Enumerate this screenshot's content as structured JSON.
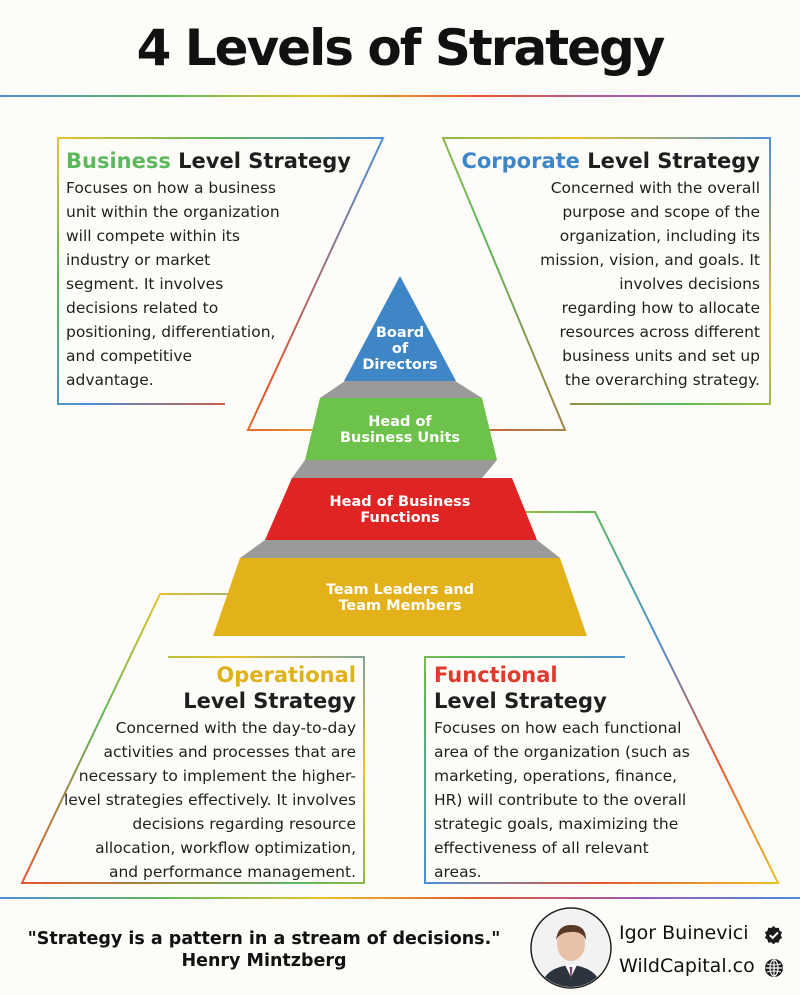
{
  "title": "4 Levels of Strategy",
  "business": {
    "accent": "Business",
    "rest": " Level Strategy",
    "lines": [
      "Focuses on how a business",
      "unit within the organization",
      "will compete within its",
      "industry or market",
      "segment. It involves",
      "decisions related to",
      "positioning, differentiation,",
      "and competitive",
      "advantage."
    ]
  },
  "corporate": {
    "accent": "Corporate",
    "rest": " Level Strategy",
    "lines": [
      "Concerned with the overall",
      "purpose and scope of the",
      "organization, including its",
      "mission, vision, and goals. It",
      "involves decisions",
      "regarding how to allocate",
      "resources across different",
      "business units and set up",
      "the overarching strategy."
    ]
  },
  "operational": {
    "accent": "Operational",
    "heading2": "Level Strategy",
    "lines": [
      "Concerned with the day-to-day",
      "activities and processes that are",
      "necessary to implement the higher-",
      "level strategies effectively. It involves",
      "decisions regarding resource",
      "allocation, workflow optimization,",
      "and performance management."
    ]
  },
  "functional": {
    "accent": "Functional",
    "heading2": "Level Strategy",
    "lines": [
      "Focuses on how each functional",
      "area of the organization (such as",
      "marketing, operations, finance,",
      "HR) will contribute to the overall",
      "strategic goals, maximizing the",
      "effectiveness of all relevant",
      "areas."
    ]
  },
  "pyramid": {
    "board": [
      "Board",
      "of",
      "Directors"
    ],
    "units": [
      "Head of",
      "Business Units"
    ],
    "functions": [
      "Head of Business",
      "Functions"
    ],
    "team": [
      "Team Leaders and",
      "Team Members"
    ]
  },
  "colors": {
    "blue": "#3f86c7",
    "green": "#6cc24a",
    "red": "#e02424",
    "yellow": "#e3b21b",
    "gray": "#9a9a9a"
  },
  "footer": {
    "quote": "\"Strategy is a pattern in a stream of decisions.\"",
    "quote_author": "Henry Mintzberg",
    "name": "Igor Buinevici",
    "site": "WildCapital.co",
    "verified_icon": "verified-check-icon",
    "globe_icon": "globe-icon"
  }
}
